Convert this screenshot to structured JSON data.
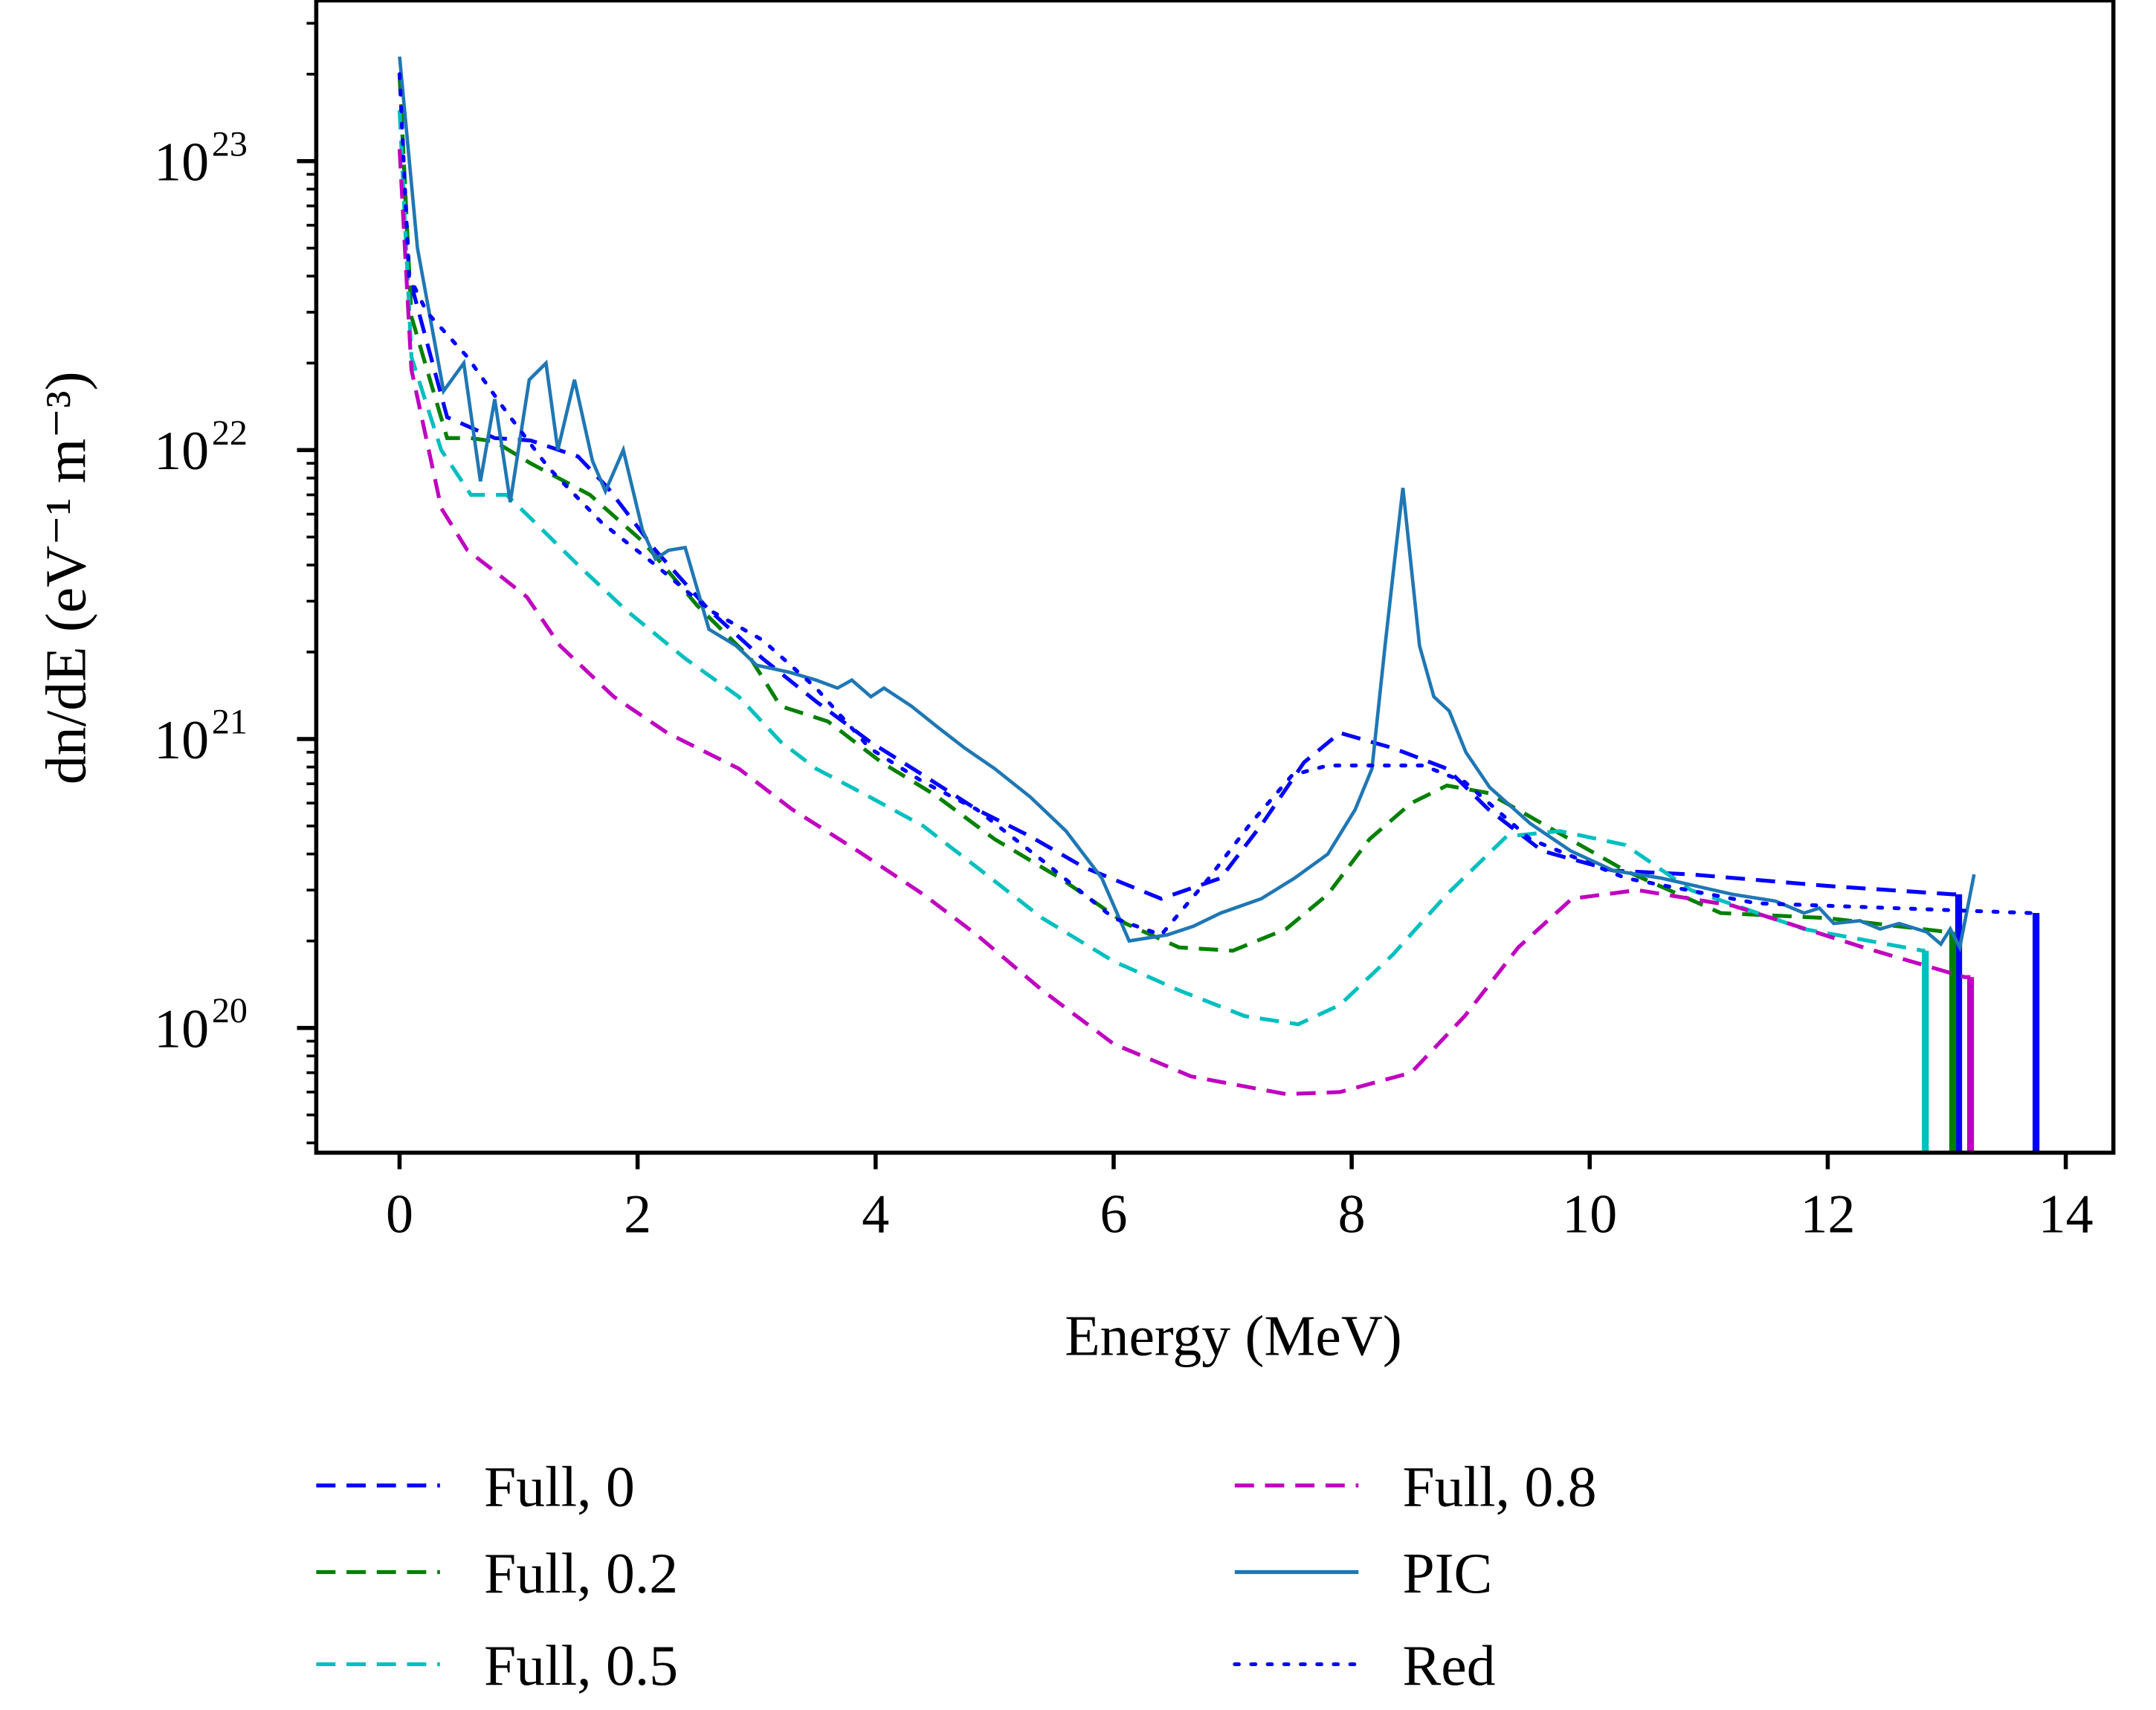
{
  "chart_data": {
    "type": "line",
    "title": "",
    "xlabel": "Energy (MeV)",
    "ylabel": "dn/dE (eV⁻¹ m⁻³)",
    "xlim": [
      -0.7,
      14.4
    ],
    "ylim": [
      3.7e+19,
      3.6e+23
    ],
    "yscale": "log",
    "grid": false,
    "legend_placement": "bottom, below plot, two columns",
    "xticks": [
      0,
      2,
      4,
      6,
      8,
      10,
      12,
      14
    ],
    "yticks": [
      {
        "value": 1e+20,
        "base": "10",
        "exp": "20"
      },
      {
        "value": 1e+21,
        "base": "10",
        "exp": "21"
      },
      {
        "value": 1e+22,
        "base": "10",
        "exp": "22"
      },
      {
        "value": 1e+23,
        "base": "10",
        "exp": "23"
      }
    ],
    "series": [
      {
        "name": "Full, 0",
        "color": "#0000ff",
        "style": "dashed",
        "drop_at_end": true,
        "x": [
          0,
          0.08,
          0.4,
          0.8,
          1.1,
          1.5,
          1.75,
          2.15,
          2.6,
          3.05,
          3.5,
          3.95,
          4.4,
          4.85,
          5.3,
          5.75,
          6.4,
          6.9,
          7.25,
          7.6,
          7.9,
          8.35,
          8.8,
          9.15,
          9.6,
          10.2,
          10.85,
          12.0,
          13.05,
          13.1
        ],
        "y": [
          2e+23,
          4e+22,
          1.3e+22,
          1.1e+22,
          1.08e+22,
          9.5e+21,
          7.4e+21,
          4.5e+21,
          2.8e+21,
          1.9e+21,
          1.35e+21,
          9.8e+20,
          7.5e+20,
          5.7e+20,
          4.6e+20,
          3.6e+20,
          2.8e+20,
          3.3e+20,
          5.1e+20,
          8.3e+20,
          1.05e+21,
          9.3e+20,
          7.9e+20,
          5.7e+20,
          4.1e+20,
          3.5e+20,
          3.4e+20,
          3.1e+20,
          2.9e+20,
          2.9e+20
        ]
      },
      {
        "name": "Full, 0.2",
        "color": "#008000",
        "style": "dashed",
        "drop_at_end": true,
        "x": [
          0,
          0.1,
          0.4,
          0.6,
          0.8,
          1.1,
          1.6,
          2.05,
          2.5,
          2.95,
          3.2,
          3.6,
          4.05,
          4.5,
          5.0,
          5.55,
          6.1,
          6.55,
          7.0,
          7.45,
          7.8,
          8.15,
          8.5,
          8.8,
          9.15,
          9.6,
          10.3,
          11.1,
          12.0,
          13.0,
          13.05
        ],
        "y": [
          2e+23,
          2.9e+22,
          1.1e+22,
          1.1e+22,
          1.07e+22,
          9e+21,
          7e+21,
          4.8e+21,
          2.9e+21,
          1.9e+21,
          1.3e+21,
          1.15e+21,
          8.3e+20,
          6.4e+20,
          4.5e+20,
          3.3e+20,
          2.3e+20,
          1.9e+20,
          1.85e+20,
          2.2e+20,
          2.9e+20,
          4.5e+20,
          6e+20,
          6.9e+20,
          6.5e+20,
          5.1e+20,
          3.5e+20,
          2.5e+20,
          2.4e+20,
          2.15e+20,
          2.15e+20
        ]
      },
      {
        "name": "Full, 0.5",
        "color": "#00bfbf",
        "style": "dashed",
        "drop_at_end": true,
        "x": [
          0,
          0.1,
          0.35,
          0.6,
          0.9,
          1.2,
          1.5,
          1.9,
          2.4,
          2.85,
          3.2,
          3.5,
          3.95,
          4.4,
          4.85,
          5.4,
          6.0,
          6.55,
          7.1,
          7.55,
          7.9,
          8.35,
          8.8,
          9.3,
          9.75,
          10.3,
          10.85,
          11.8,
          12.8,
          12.82
        ],
        "y": [
          1.5e+23,
          2.1e+22,
          1e+22,
          7e+21,
          7e+21,
          5.3e+21,
          4e+21,
          2.8e+21,
          1.9e+21,
          1.4e+21,
          9.8e+20,
          7.9e+20,
          6.3e+20,
          5e+20,
          3.6e+20,
          2.4e+20,
          1.7e+20,
          1.35e+20,
          1.1e+20,
          1.03e+20,
          1.2e+20,
          1.8e+20,
          2.9e+20,
          4.6e+20,
          4.8e+20,
          4.3e+20,
          3e+20,
          2.2e+20,
          1.85e+20,
          1.85e+20
        ]
      },
      {
        "name": "Full, 0.8",
        "color": "#bf00bf",
        "style": "dashed",
        "drop_at_end": true,
        "x": [
          0,
          0.1,
          0.35,
          0.57,
          0.8,
          1.07,
          1.35,
          1.8,
          2.25,
          2.85,
          3.3,
          3.85,
          4.4,
          4.85,
          5.4,
          6.0,
          6.65,
          7.45,
          7.9,
          8.5,
          8.95,
          9.4,
          9.85,
          10.4,
          11.2,
          12.3,
          13.15,
          13.2
        ],
        "y": [
          1.1e+23,
          1.9e+22,
          6.3e+21,
          4.5e+21,
          3.8e+21,
          3.1e+21,
          2.1e+21,
          1.4e+21,
          1.05e+21,
          7.9e+20,
          5.7e+20,
          4.1e+20,
          2.9e+20,
          2.1e+20,
          1.35e+20,
          8.8e+19,
          6.8e+19,
          5.9e+19,
          6e+19,
          7e+19,
          1.1e+20,
          1.9e+20,
          2.8e+20,
          3e+20,
          2.65e+20,
          1.9e+20,
          1.5e+20,
          1.5e+20
        ]
      },
      {
        "name": "PIC",
        "color": "#1f77b4",
        "style": "solid",
        "drop_at_end": false,
        "x": [
          0,
          0.15,
          0.37,
          0.54,
          0.68,
          0.8,
          0.93,
          1.09,
          1.23,
          1.33,
          1.47,
          1.62,
          1.73,
          1.88,
          2.04,
          2.15,
          2.26,
          2.4,
          2.6,
          2.83,
          3.0,
          3.28,
          3.5,
          3.68,
          3.8,
          3.96,
          4.07,
          4.3,
          4.52,
          4.75,
          5.0,
          5.3,
          5.6,
          5.9,
          6.13,
          6.45,
          6.67,
          6.9,
          7.24,
          7.52,
          7.8,
          8.03,
          8.17,
          8.28,
          8.37,
          8.43,
          8.57,
          8.69,
          8.82,
          8.96,
          9.16,
          9.5,
          9.84,
          10.2,
          10.6,
          11.2,
          11.56,
          11.8,
          11.93,
          12.05,
          12.27,
          12.44,
          12.6,
          12.83,
          12.95,
          13.03,
          13.11,
          13.23
        ],
        "y": [
          2.3e+23,
          5e+22,
          1.6e+22,
          2e+22,
          7.8e+21,
          1.5e+22,
          6.6e+21,
          1.75e+22,
          2e+22,
          1e+22,
          1.75e+22,
          9.2e+21,
          7.2e+21,
          1e+22,
          5.3e+21,
          4.2e+21,
          4.5e+21,
          4.6e+21,
          2.4e+21,
          2.1e+21,
          1.8e+21,
          1.7e+21,
          1.6e+21,
          1.5e+21,
          1.6e+21,
          1.4e+21,
          1.5e+21,
          1.3e+21,
          1.1e+21,
          9.3e+20,
          7.9e+20,
          6.3e+20,
          4.8e+20,
          3.3e+20,
          2e+20,
          2.1e+20,
          2.25e+20,
          2.5e+20,
          2.8e+20,
          3.3e+20,
          4e+20,
          5.7e+20,
          7.9e+20,
          2.1e+21,
          4.5e+21,
          7.4e+21,
          2.1e+21,
          1.4e+21,
          1.25e+21,
          9e+20,
          6.8e+20,
          5.1e+20,
          4.1e+20,
          3.5e+20,
          3.3e+20,
          2.9e+20,
          2.75e+20,
          2.5e+20,
          2.6e+20,
          2.3e+20,
          2.35e+20,
          2.2e+20,
          2.3e+20,
          2.15e+20,
          1.95e+20,
          2.2e+20,
          1.9e+20,
          3.4e+20
        ]
      },
      {
        "name": "Red",
        "color": "#0000ff",
        "style": "dotted",
        "drop_at_end": true,
        "x": [
          0,
          0.08,
          0.23,
          0.57,
          0.9,
          1.25,
          1.7,
          2.15,
          2.6,
          3.05,
          3.5,
          3.95,
          4.4,
          4.85,
          5.4,
          6.0,
          6.4,
          6.8,
          7.15,
          7.5,
          7.8,
          8.6,
          8.95,
          9.5,
          10.3,
          11.4,
          12.55,
          13.7,
          13.75
        ],
        "y": [
          2e+23,
          4e+22,
          3e+22,
          2.1e+22,
          1.35e+22,
          8.7e+21,
          5.6e+21,
          4e+21,
          2.8e+21,
          2.2e+21,
          1.5e+21,
          9.3e+20,
          7.1e+20,
          5.7e+20,
          3.8e+20,
          2.4e+20,
          2.1e+20,
          3.3e+20,
          5.1e+20,
          7.5e+20,
          8.1e+20,
          8.1e+20,
          7.1e+20,
          4.5e+20,
          3.3e+20,
          2.7e+20,
          2.6e+20,
          2.5e+20,
          2.5e+20
        ]
      }
    ]
  }
}
